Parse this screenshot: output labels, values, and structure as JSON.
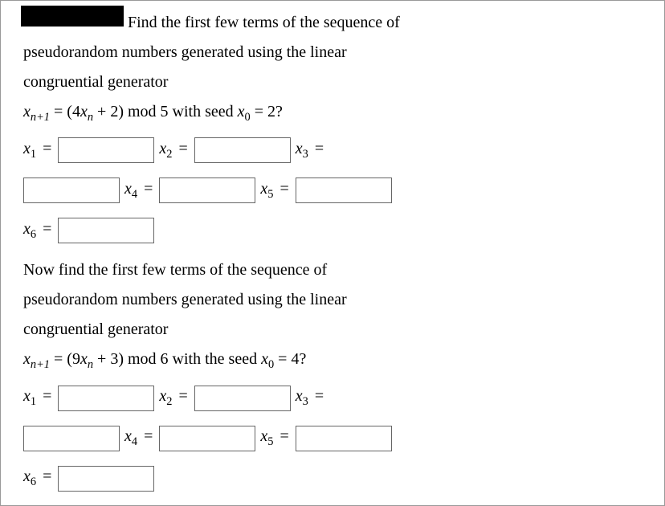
{
  "problem1": {
    "intro_line1": "Find the first few terms of the sequence of",
    "intro_line2": "pseudorandom numbers generated using the linear",
    "intro_line3": "congruential generator",
    "formula_lhs": "x",
    "formula_lhs_sub": "n+1",
    "formula_eq": " = (4",
    "formula_xn": "x",
    "formula_xn_sub": "n",
    "formula_rhs": " + 2) mod 5 ",
    "formula_with": "with seed ",
    "formula_x0": "x",
    "formula_x0_sub": "0",
    "formula_seed_val": " = 2?",
    "labels": {
      "x1": "x",
      "x1_sub": "1",
      "x1_eq": " =",
      "x2": "x",
      "x2_sub": "2",
      "x2_eq": " =",
      "x3": "x",
      "x3_sub": "3",
      "x3_eq": " =",
      "x4": "x",
      "x4_sub": "4",
      "x4_eq": " =",
      "x5": "x",
      "x5_sub": "5",
      "x5_eq": " =",
      "x6": "x",
      "x6_sub": "6",
      "x6_eq": " ="
    }
  },
  "problem2": {
    "intro_line1": "Now find the first few terms of the sequence of",
    "intro_line2": "pseudorandom numbers generated using the linear",
    "intro_line3": "congruential generator",
    "formula_lhs": "x",
    "formula_lhs_sub": "n+1",
    "formula_eq": " = (9",
    "formula_xn": "x",
    "formula_xn_sub": "n",
    "formula_rhs": " + 3) mod 6 ",
    "formula_with": "with the seed ",
    "formula_x0": "x",
    "formula_x0_sub": "0",
    "formula_seed_val": " = 4?",
    "labels": {
      "x1": "x",
      "x1_sub": "1",
      "x1_eq": " =",
      "x2": "x",
      "x2_sub": "2",
      "x2_eq": " =",
      "x3": "x",
      "x3_sub": "3",
      "x3_eq": " =",
      "x4": "x",
      "x4_sub": "4",
      "x4_eq": " =",
      "x5": "x",
      "x5_sub": "5",
      "x5_eq": " =",
      "x6": "x",
      "x6_sub": "6",
      "x6_eq": " ="
    }
  },
  "style": {
    "input_border": "#666666",
    "text_color": "#000000",
    "background": "#ffffff",
    "font_size_body": 20,
    "input_height": 32,
    "input_width": 120,
    "redaction_color": "#000000"
  }
}
